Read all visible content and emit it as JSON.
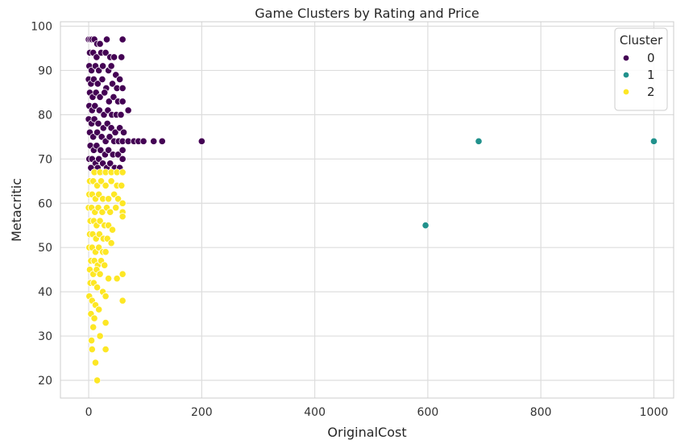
{
  "chart_data": {
    "type": "scatter",
    "title": "Game Clusters by Rating and Price",
    "xlabel": "OriginalCost",
    "ylabel": "Metacritic",
    "xlim": [
      -50,
      1035
    ],
    "ylim": [
      16,
      101
    ],
    "xticks": [
      0,
      200,
      400,
      600,
      800,
      1000
    ],
    "yticks": [
      20,
      30,
      40,
      50,
      60,
      70,
      80,
      90,
      100
    ],
    "grid": true,
    "legend": {
      "title": "Cluster",
      "placement": "top-right"
    },
    "series": [
      {
        "name": "0",
        "color": "#440154",
        "points": [
          [
            0,
            97
          ],
          [
            3,
            97
          ],
          [
            6,
            97
          ],
          [
            10,
            97
          ],
          [
            15,
            96
          ],
          [
            20,
            96
          ],
          [
            32,
            97
          ],
          [
            60,
            97
          ],
          [
            2,
            94
          ],
          [
            8,
            94
          ],
          [
            14,
            93
          ],
          [
            22,
            94
          ],
          [
            30,
            94
          ],
          [
            38,
            93
          ],
          [
            45,
            93
          ],
          [
            58,
            93
          ],
          [
            1,
            91
          ],
          [
            5,
            90
          ],
          [
            12,
            91
          ],
          [
            18,
            90
          ],
          [
            25,
            91
          ],
          [
            35,
            90
          ],
          [
            40,
            91
          ],
          [
            48,
            89
          ],
          [
            55,
            88
          ],
          [
            0,
            88
          ],
          [
            4,
            87
          ],
          [
            9,
            88
          ],
          [
            16,
            87
          ],
          [
            24,
            88
          ],
          [
            31,
            86
          ],
          [
            42,
            87
          ],
          [
            50,
            86
          ],
          [
            60,
            86
          ],
          [
            2,
            85
          ],
          [
            7,
            84
          ],
          [
            13,
            85
          ],
          [
            20,
            84
          ],
          [
            28,
            85
          ],
          [
            36,
            83
          ],
          [
            44,
            84
          ],
          [
            52,
            83
          ],
          [
            60,
            83
          ],
          [
            1,
            82
          ],
          [
            6,
            81
          ],
          [
            11,
            82
          ],
          [
            19,
            81
          ],
          [
            27,
            80
          ],
          [
            34,
            81
          ],
          [
            41,
            80
          ],
          [
            49,
            80
          ],
          [
            57,
            80
          ],
          [
            70,
            81
          ],
          [
            0,
            79
          ],
          [
            5,
            78
          ],
          [
            10,
            79
          ],
          [
            17,
            78
          ],
          [
            26,
            77
          ],
          [
            33,
            78
          ],
          [
            40,
            77
          ],
          [
            47,
            76
          ],
          [
            55,
            77
          ],
          [
            62,
            76
          ],
          [
            2,
            76
          ],
          [
            8,
            75
          ],
          [
            15,
            76
          ],
          [
            23,
            75
          ],
          [
            30,
            74
          ],
          [
            37,
            75
          ],
          [
            45,
            74
          ],
          [
            53,
            74
          ],
          [
            60,
            74
          ],
          [
            70,
            74
          ],
          [
            80,
            74
          ],
          [
            88,
            74
          ],
          [
            97,
            74
          ],
          [
            115,
            74
          ],
          [
            130,
            74
          ],
          [
            200,
            74
          ],
          [
            3,
            73
          ],
          [
            9,
            72
          ],
          [
            14,
            73
          ],
          [
            21,
            72
          ],
          [
            29,
            71
          ],
          [
            35,
            72
          ],
          [
            43,
            71
          ],
          [
            52,
            71
          ],
          [
            60,
            72
          ],
          [
            1,
            70
          ],
          [
            6,
            70
          ],
          [
            12,
            69
          ],
          [
            18,
            70
          ],
          [
            25,
            69
          ],
          [
            32,
            68
          ],
          [
            38,
            69
          ],
          [
            46,
            68
          ],
          [
            55,
            68
          ],
          [
            60,
            70
          ],
          [
            4,
            68
          ],
          [
            10,
            67
          ],
          [
            16,
            68
          ],
          [
            22,
            67
          ]
        ]
      },
      {
        "name": "1",
        "color": "#21918c",
        "points": [
          [
            690,
            74
          ],
          [
            1000,
            74
          ],
          [
            596,
            55
          ]
        ]
      },
      {
        "name": "2",
        "color": "#fde725",
        "points": [
          [
            10,
            67
          ],
          [
            20,
            67
          ],
          [
            30,
            67
          ],
          [
            40,
            67
          ],
          [
            50,
            67
          ],
          [
            60,
            67
          ],
          [
            2,
            65
          ],
          [
            8,
            65
          ],
          [
            15,
            64
          ],
          [
            22,
            65
          ],
          [
            30,
            64
          ],
          [
            40,
            65
          ],
          [
            50,
            64
          ],
          [
            58,
            64
          ],
          [
            1,
            62
          ],
          [
            6,
            62
          ],
          [
            12,
            61
          ],
          [
            18,
            62
          ],
          [
            25,
            61
          ],
          [
            35,
            61
          ],
          [
            45,
            62
          ],
          [
            52,
            61
          ],
          [
            60,
            60
          ],
          [
            0,
            59
          ],
          [
            5,
            59
          ],
          [
            11,
            58
          ],
          [
            17,
            59
          ],
          [
            24,
            58
          ],
          [
            32,
            59
          ],
          [
            38,
            58
          ],
          [
            48,
            59
          ],
          [
            60,
            58
          ],
          [
            60,
            57
          ],
          [
            3,
            56
          ],
          [
            9,
            56
          ],
          [
            14,
            55
          ],
          [
            20,
            56
          ],
          [
            28,
            55
          ],
          [
            35,
            55
          ],
          [
            42,
            54
          ],
          [
            2,
            53
          ],
          [
            7,
            53
          ],
          [
            13,
            52
          ],
          [
            19,
            53
          ],
          [
            26,
            52
          ],
          [
            33,
            52
          ],
          [
            40,
            51
          ],
          [
            1,
            50
          ],
          [
            6,
            50
          ],
          [
            12,
            49
          ],
          [
            18,
            50
          ],
          [
            25,
            49
          ],
          [
            30,
            49
          ],
          [
            4,
            47
          ],
          [
            10,
            47
          ],
          [
            16,
            46
          ],
          [
            22,
            47
          ],
          [
            28,
            46
          ],
          [
            2,
            45
          ],
          [
            8,
            44
          ],
          [
            14,
            45
          ],
          [
            20,
            44
          ],
          [
            35,
            43
          ],
          [
            50,
            43
          ],
          [
            60,
            44
          ],
          [
            3,
            42
          ],
          [
            9,
            42
          ],
          [
            15,
            41
          ],
          [
            25,
            40
          ],
          [
            30,
            39
          ],
          [
            60,
            38
          ],
          [
            1,
            39
          ],
          [
            6,
            38
          ],
          [
            12,
            37
          ],
          [
            18,
            36
          ],
          [
            4,
            35
          ],
          [
            10,
            34
          ],
          [
            30,
            33
          ],
          [
            8,
            32
          ],
          [
            5,
            29
          ],
          [
            20,
            30
          ],
          [
            6,
            27
          ],
          [
            30,
            27
          ],
          [
            12,
            24
          ],
          [
            15,
            20
          ]
        ]
      }
    ]
  }
}
